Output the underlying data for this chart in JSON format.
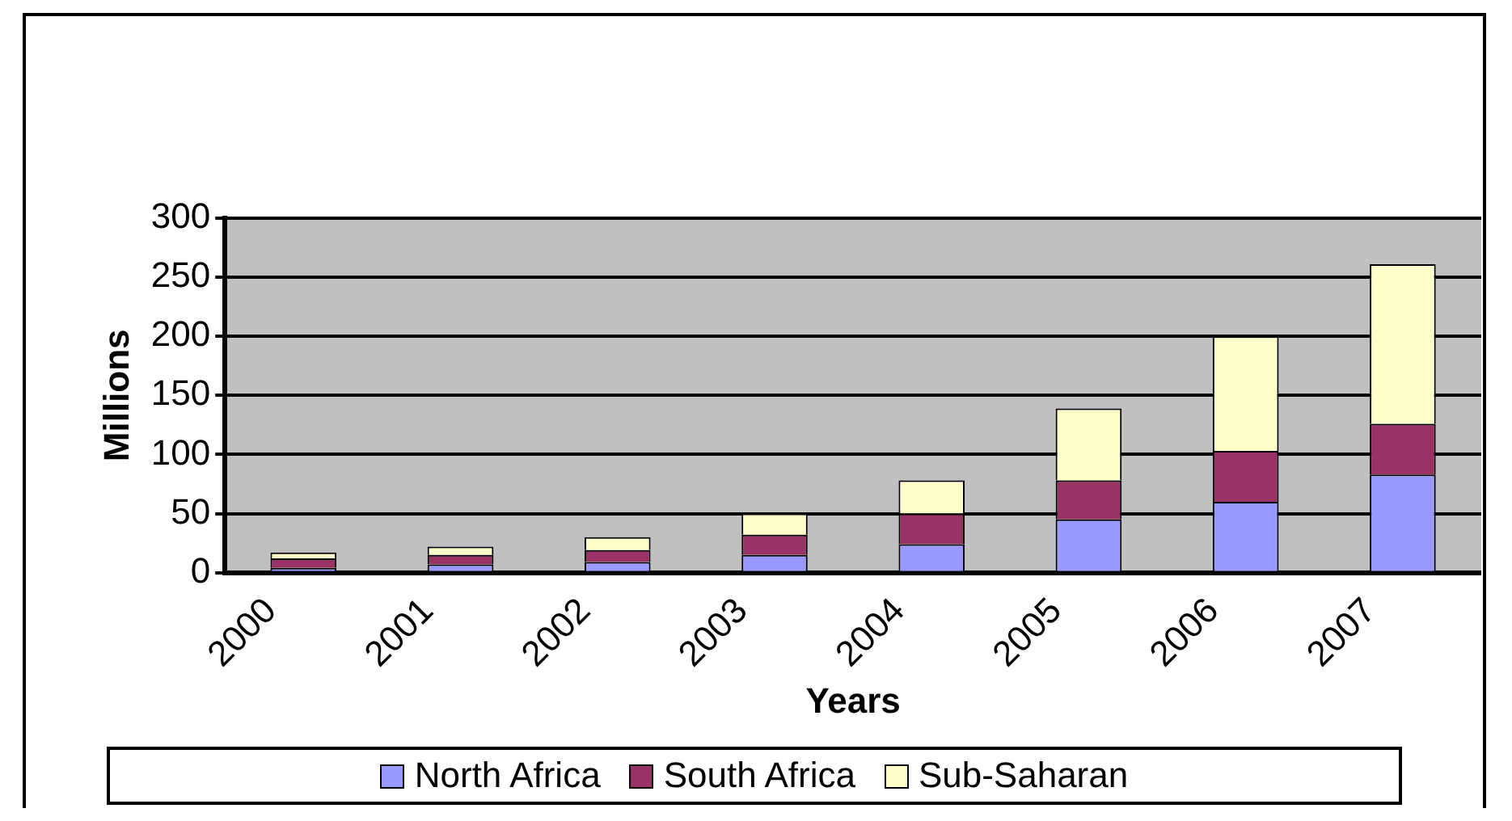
{
  "chart_data": {
    "type": "bar",
    "stacked": true,
    "xlabel": "Years",
    "ylabel": "Millions",
    "categories": [
      "2000",
      "2001",
      "2002",
      "2003",
      "2004",
      "2005",
      "2006",
      "2007"
    ],
    "series": [
      {
        "name": "North Africa",
        "color": "#9999ff",
        "values": [
          4,
          7,
          9,
          15,
          24,
          45,
          60,
          83
        ]
      },
      {
        "name": "South Africa",
        "color": "#993366",
        "values": [
          8,
          8,
          10,
          17,
          26,
          33,
          43,
          43
        ]
      },
      {
        "name": "Sub-Saharan",
        "color": "#ffffcc",
        "values": [
          5,
          7,
          11,
          18,
          28,
          61,
          97,
          135
        ]
      }
    ],
    "ylim": [
      0,
      300
    ],
    "yticks": [
      0,
      50,
      100,
      150,
      200,
      250,
      300
    ],
    "grid": "y",
    "legend": "bottom"
  }
}
